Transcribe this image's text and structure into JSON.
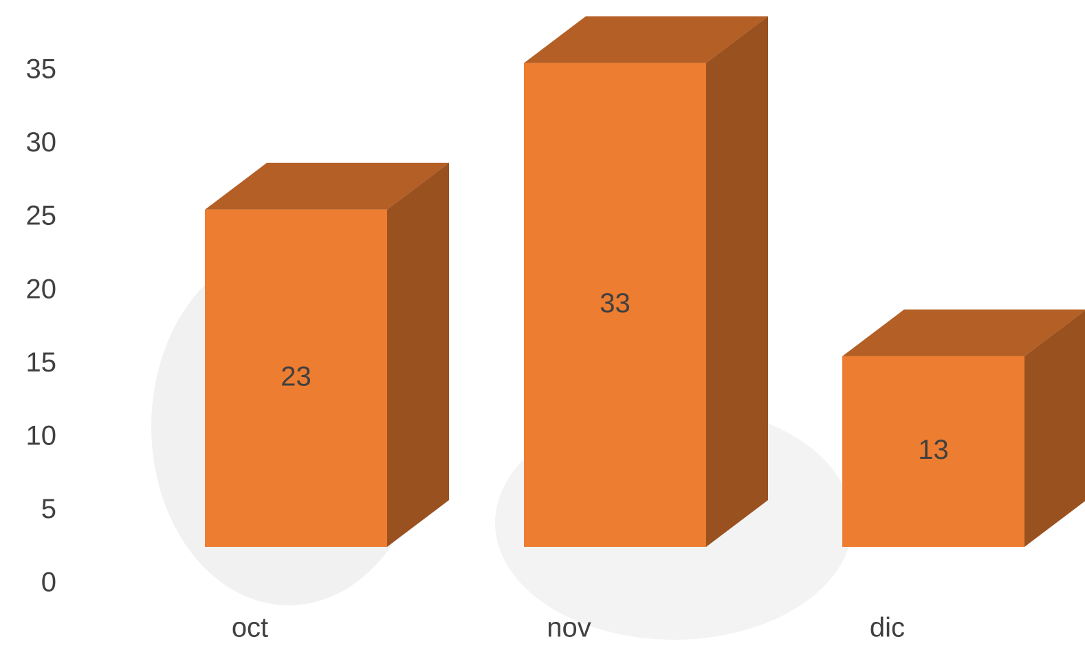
{
  "chart_data": {
    "type": "bar3d",
    "categories": [
      "oct",
      "nov",
      "dic"
    ],
    "values": [
      23,
      33,
      13
    ],
    "color": "#ED7D31",
    "ylim": [
      0,
      35
    ],
    "yticks": [
      0,
      5,
      10,
      15,
      20,
      25,
      30,
      35
    ],
    "data_labels": true
  }
}
